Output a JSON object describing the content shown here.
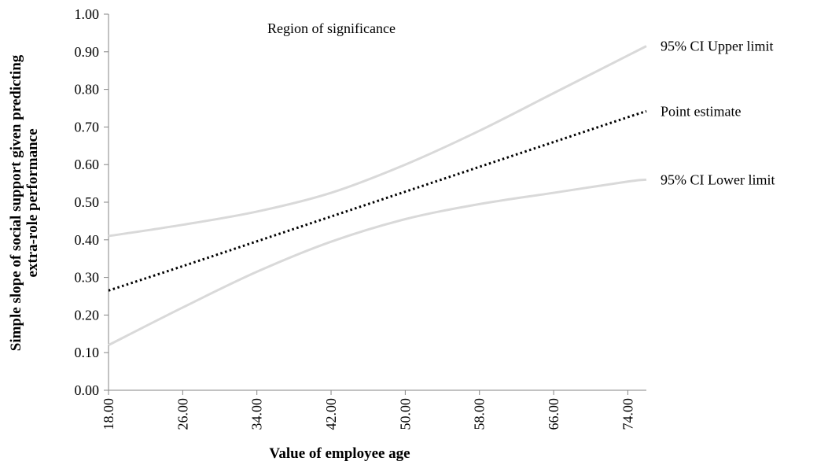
{
  "chart_data": {
    "type": "line",
    "xlabel": "Value of employee age",
    "ylabel_line1": "Simple slope of social support given predicting",
    "ylabel_line2": "extra-role performance",
    "annotation": "Region of significance",
    "xlim": [
      18,
      76
    ],
    "ylim": [
      0,
      1
    ],
    "x_ticks": [
      "18.00",
      "26.00",
      "34.00",
      "42.00",
      "50.00",
      "58.00",
      "66.00",
      "74.00"
    ],
    "y_ticks": [
      "0.00",
      "0.10",
      "0.20",
      "0.30",
      "0.40",
      "0.50",
      "0.60",
      "0.70",
      "0.80",
      "0.90",
      "1.00"
    ],
    "series": [
      {
        "name": "95% CI Upper limit",
        "style": "solid",
        "color": "#d9d9d9",
        "x": [
          18,
          26,
          34,
          42,
          50,
          58,
          66,
          74,
          76
        ],
        "y": [
          0.41,
          0.44,
          0.475,
          0.525,
          0.6,
          0.69,
          0.79,
          0.89,
          0.915
        ]
      },
      {
        "name": "Point estimate",
        "style": "dotted",
        "color": "#000000",
        "x": [
          18,
          26,
          34,
          42,
          50,
          58,
          66,
          74,
          76
        ],
        "y": [
          0.265,
          0.33,
          0.396,
          0.462,
          0.528,
          0.594,
          0.66,
          0.726,
          0.742
        ]
      },
      {
        "name": "95% CI Lower limit",
        "style": "solid",
        "color": "#d9d9d9",
        "x": [
          18,
          26,
          34,
          42,
          50,
          58,
          66,
          74,
          76
        ],
        "y": [
          0.12,
          0.22,
          0.315,
          0.395,
          0.455,
          0.495,
          0.525,
          0.555,
          0.56
        ]
      }
    ]
  }
}
